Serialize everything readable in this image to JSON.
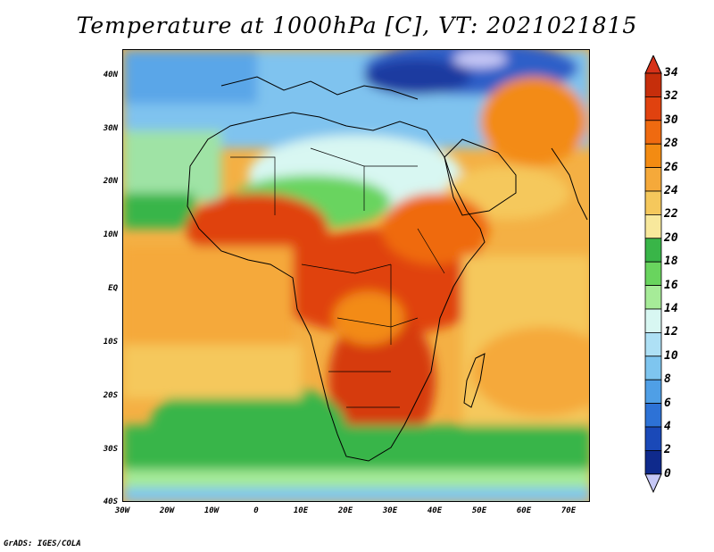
{
  "title": "Temperature at 1000hPa [C], VT: 2021021815",
  "footer": "GrADS: IGES/COLA",
  "lat_labels": [
    "40N",
    "30N",
    "20N",
    "10N",
    "EQ",
    "10S",
    "20S",
    "30S",
    "40S"
  ],
  "lon_labels": [
    "30W",
    "20W",
    "10W",
    "0",
    "10E",
    "20E",
    "30E",
    "40E",
    "50E",
    "60E",
    "70E"
  ],
  "colorbar": {
    "labels": [
      "34",
      "32",
      "30",
      "28",
      "26",
      "24",
      "22",
      "20",
      "18",
      "16",
      "14",
      "12",
      "10",
      "8",
      "6",
      "4",
      "2",
      "0"
    ],
    "colors": [
      "#c62e0b",
      "#e0420f",
      "#ef6a10",
      "#f38b12",
      "#f5a93a",
      "#f5c85c",
      "#f8e89c",
      "#39b548",
      "#69d45e",
      "#a6eb98",
      "#d8f7f2",
      "#aee0f5",
      "#7ec5ef",
      "#4f9fe6",
      "#2d72d6",
      "#1a49b8",
      "#0f2a8c",
      "#0b1660"
    ],
    "top_arrow": "#d63219",
    "bottom_arrow": "#c6c8f6"
  }
}
